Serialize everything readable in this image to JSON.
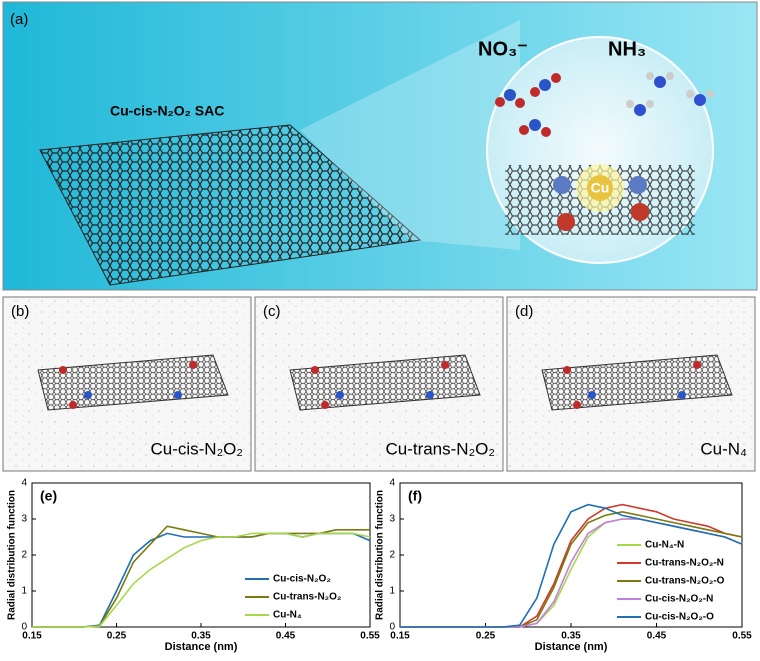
{
  "panel_a": {
    "label": "(a)",
    "sheet_label": "Cu-cis-N₂O₂ SAC",
    "reactant": "NO₃⁻",
    "product": "NH₃",
    "center": "Cu"
  },
  "panels": [
    {
      "label": "(b)",
      "caption": "Cu-cis-N₂O₂"
    },
    {
      "label": "(c)",
      "caption": "Cu-trans-N₂O₂"
    },
    {
      "label": "(d)",
      "caption": "Cu-N₄"
    }
  ],
  "chart_data": [
    {
      "type": "line",
      "label": "(e)",
      "xlabel": "Distance (nm)",
      "ylabel": "Radial distribution function",
      "x": [
        0.15,
        0.17,
        0.19,
        0.21,
        0.23,
        0.25,
        0.27,
        0.29,
        0.31,
        0.33,
        0.35,
        0.37,
        0.39,
        0.41,
        0.43,
        0.45,
        0.47,
        0.49,
        0.51,
        0.53,
        0.55
      ],
      "xlim": [
        0.15,
        0.55
      ],
      "xticks": [
        0.15,
        0.25,
        0.35,
        0.45,
        0.55
      ],
      "ylim": [
        0,
        4
      ],
      "yticks": [
        0,
        1,
        2,
        3,
        4
      ],
      "legend": "lower-right",
      "series": [
        {
          "name": "Cu-cis-N₂O₂",
          "color": "#1f6fb5",
          "values": [
            0,
            0,
            0,
            0,
            0.05,
            1.0,
            2.0,
            2.4,
            2.6,
            2.5,
            2.5,
            2.5,
            2.5,
            2.5,
            2.6,
            2.6,
            2.5,
            2.6,
            2.6,
            2.6,
            2.4
          ]
        },
        {
          "name": "Cu-trans-N₂O₂",
          "color": "#7a7a10",
          "values": [
            0,
            0,
            0,
            0,
            0.03,
            0.8,
            1.8,
            2.3,
            2.8,
            2.7,
            2.6,
            2.5,
            2.5,
            2.5,
            2.6,
            2.6,
            2.6,
            2.6,
            2.7,
            2.7,
            2.7
          ]
        },
        {
          "name": "Cu-N₄",
          "color": "#a8d84a",
          "values": [
            0,
            0,
            0,
            0,
            0.02,
            0.6,
            1.2,
            1.6,
            1.9,
            2.2,
            2.4,
            2.5,
            2.5,
            2.6,
            2.6,
            2.6,
            2.5,
            2.6,
            2.6,
            2.6,
            2.5
          ]
        }
      ]
    },
    {
      "type": "line",
      "label": "(f)",
      "xlabel": "Distance (nm)",
      "ylabel": "Radial distribution function",
      "x": [
        0.15,
        0.17,
        0.19,
        0.21,
        0.23,
        0.25,
        0.27,
        0.29,
        0.31,
        0.33,
        0.35,
        0.37,
        0.39,
        0.41,
        0.43,
        0.45,
        0.47,
        0.49,
        0.51,
        0.53,
        0.55
      ],
      "xlim": [
        0.15,
        0.55
      ],
      "xticks": [
        0.15,
        0.25,
        0.35,
        0.45,
        0.55
      ],
      "ylim": [
        0,
        4
      ],
      "yticks": [
        0,
        1,
        2,
        3,
        4
      ],
      "legend": "center-right",
      "series": [
        {
          "name": "Cu-N₄-N",
          "color": "#a8d84a",
          "values": [
            0,
            0,
            0,
            0,
            0,
            0,
            0,
            0,
            0.1,
            0.6,
            1.6,
            2.5,
            2.9,
            3.0,
            3.0,
            2.9,
            2.8,
            2.7,
            2.6,
            2.5,
            2.3
          ]
        },
        {
          "name": "Cu-trans-N₂O₂-N",
          "color": "#d03a2a",
          "values": [
            0,
            0,
            0,
            0,
            0,
            0,
            0,
            0,
            0.3,
            1.2,
            2.4,
            3.0,
            3.3,
            3.4,
            3.3,
            3.2,
            3.0,
            2.9,
            2.8,
            2.6,
            2.5
          ]
        },
        {
          "name": "Cu-trans-N₂O₂-O",
          "color": "#7a7a10",
          "values": [
            0,
            0,
            0,
            0,
            0,
            0,
            0,
            0,
            0.2,
            1.1,
            2.3,
            2.9,
            3.1,
            3.2,
            3.1,
            3.0,
            2.9,
            2.8,
            2.7,
            2.6,
            2.5
          ]
        },
        {
          "name": "Cu-cis-N₂O₂-N",
          "color": "#c080e0",
          "values": [
            0,
            0,
            0,
            0,
            0,
            0,
            0,
            0,
            0.1,
            0.7,
            1.8,
            2.6,
            2.9,
            3.0,
            3.0,
            2.9,
            2.8,
            2.7,
            2.6,
            2.5,
            2.3
          ]
        },
        {
          "name": "Cu-cis-N₂O₂-O",
          "color": "#1f6fb5",
          "values": [
            0,
            0,
            0,
            0,
            0,
            0,
            0,
            0.05,
            0.8,
            2.3,
            3.2,
            3.4,
            3.3,
            3.1,
            3.0,
            2.9,
            2.8,
            2.7,
            2.6,
            2.5,
            2.3
          ]
        }
      ]
    }
  ]
}
